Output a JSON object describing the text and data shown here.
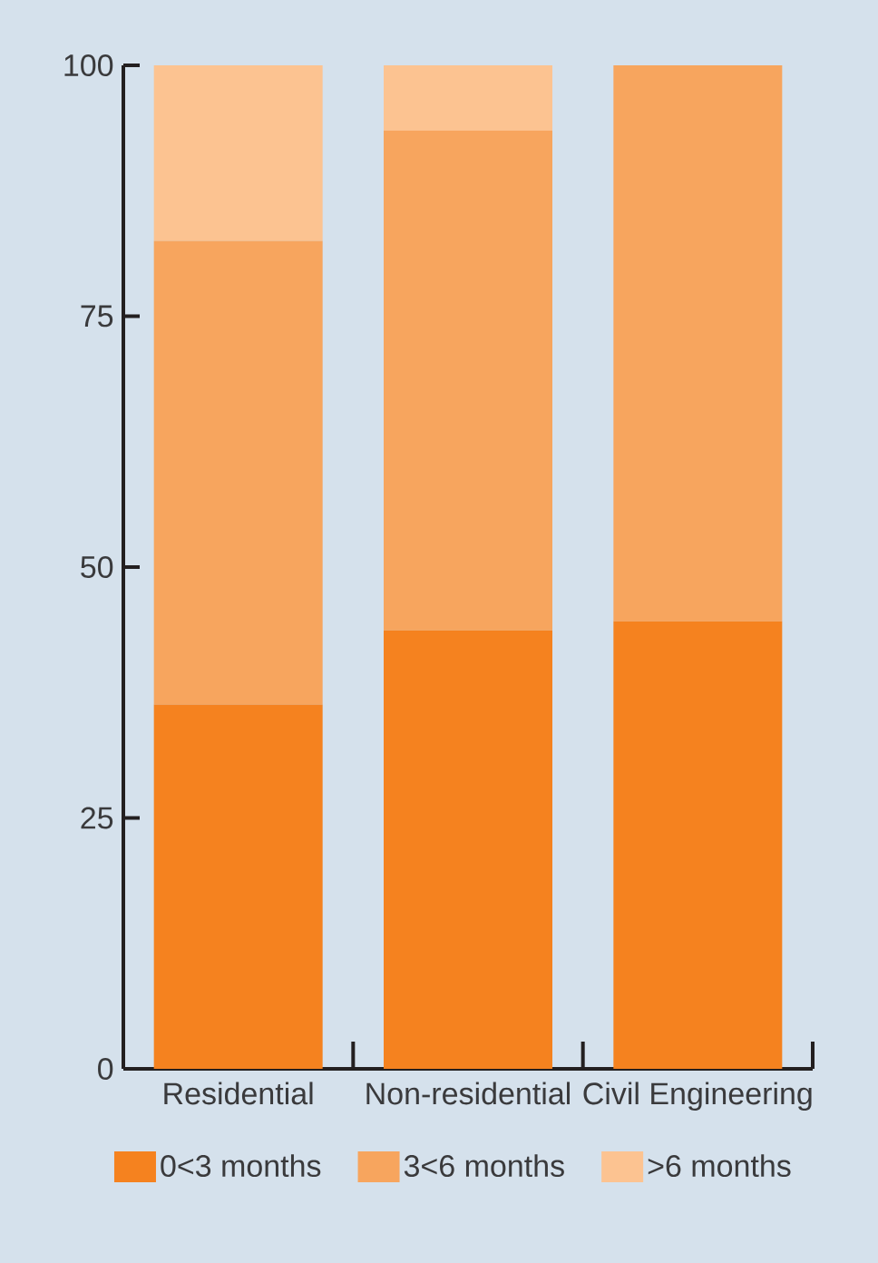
{
  "chart_data": {
    "type": "bar",
    "stacked": true,
    "categories": [
      "Residential",
      "Non-residential",
      "Civil Engineering"
    ],
    "series": [
      {
        "name": "0<3 months",
        "color": "#f5821f",
        "values": [
          36.3,
          43.7,
          44.6
        ]
      },
      {
        "name": "3<6 months",
        "color": "#f7a55e",
        "values": [
          46.2,
          49.8,
          55.4
        ]
      },
      {
        "name": ">6 months",
        "color": "#fcc391",
        "values": [
          17.5,
          6.5,
          0
        ]
      }
    ],
    "ylim": [
      0,
      100
    ],
    "yticks": [
      0,
      25,
      50,
      75,
      100
    ],
    "legend": "bottom"
  }
}
